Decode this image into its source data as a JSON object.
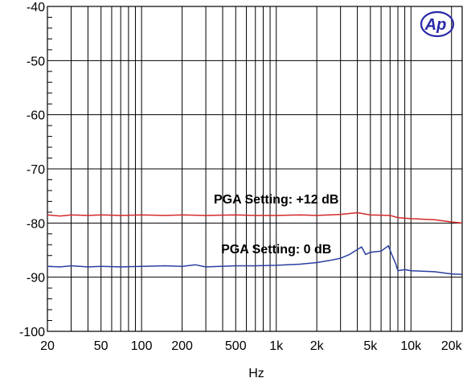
{
  "chart_data": {
    "type": "line",
    "xlabel": "Hz",
    "ylabel": "",
    "xscale": "log",
    "xlim": [
      20,
      24000
    ],
    "ylim": [
      -100,
      -40
    ],
    "grid": true,
    "x_tick_values": [
      20,
      50,
      100,
      200,
      500,
      1000,
      2000,
      5000,
      10000,
      20000
    ],
    "x_tick_labels": [
      "20",
      "50",
      "100",
      "200",
      "500",
      "1k",
      "2k",
      "5k",
      "10k",
      "20k"
    ],
    "y_tick_values": [
      -100,
      -90,
      -80,
      -70,
      -60,
      -50,
      -40
    ],
    "y_tick_labels": [
      "-100",
      "-90",
      "-80",
      "-70",
      "-60",
      "-50",
      "-40"
    ],
    "logo": "Ap",
    "series": [
      {
        "color": "#d42a2a",
        "points": [
          [
            20,
            -78.5
          ],
          [
            25,
            -78.7
          ],
          [
            30,
            -78.5
          ],
          [
            40,
            -78.6
          ],
          [
            50,
            -78.5
          ],
          [
            70,
            -78.6
          ],
          [
            100,
            -78.5
          ],
          [
            150,
            -78.6
          ],
          [
            200,
            -78.5
          ],
          [
            300,
            -78.6
          ],
          [
            500,
            -78.5
          ],
          [
            700,
            -78.6
          ],
          [
            1000,
            -78.6
          ],
          [
            1500,
            -78.5
          ],
          [
            2000,
            -78.6
          ],
          [
            3000,
            -78.4
          ],
          [
            4000,
            -78.1
          ],
          [
            5000,
            -78.5
          ],
          [
            7000,
            -78.6
          ],
          [
            8000,
            -79.0
          ],
          [
            10000,
            -79.2
          ],
          [
            15000,
            -79.4
          ],
          [
            20000,
            -79.8
          ],
          [
            24000,
            -80.0
          ]
        ]
      },
      {
        "color": "#2a3fa0",
        "points": [
          [
            20,
            -88.0
          ],
          [
            25,
            -88.1
          ],
          [
            30,
            -87.9
          ],
          [
            40,
            -88.1
          ],
          [
            50,
            -88.0
          ],
          [
            70,
            -88.1
          ],
          [
            100,
            -88.0
          ],
          [
            150,
            -87.9
          ],
          [
            200,
            -88.0
          ],
          [
            250,
            -87.7
          ],
          [
            300,
            -88.1
          ],
          [
            500,
            -87.9
          ],
          [
            700,
            -87.9
          ],
          [
            1000,
            -87.8
          ],
          [
            1500,
            -87.6
          ],
          [
            2000,
            -87.3
          ],
          [
            2500,
            -86.9
          ],
          [
            3000,
            -86.5
          ],
          [
            3500,
            -85.8
          ],
          [
            4000,
            -84.9
          ],
          [
            4300,
            -84.4
          ],
          [
            4600,
            -85.8
          ],
          [
            5000,
            -85.4
          ],
          [
            6000,
            -85.2
          ],
          [
            6800,
            -84.2
          ],
          [
            7200,
            -85.8
          ],
          [
            7700,
            -87.5
          ],
          [
            8000,
            -88.8
          ],
          [
            9000,
            -88.6
          ],
          [
            10000,
            -88.8
          ],
          [
            15000,
            -89.0
          ],
          [
            20000,
            -89.4
          ],
          [
            24000,
            -89.5
          ]
        ]
      }
    ],
    "annotations": [
      {
        "text": "PGA Setting: +12 dB",
        "x": 1000,
        "y": -76.4
      },
      {
        "text": "PGA Setting: 0 dB",
        "x": 1000,
        "y": -85.6
      }
    ]
  }
}
